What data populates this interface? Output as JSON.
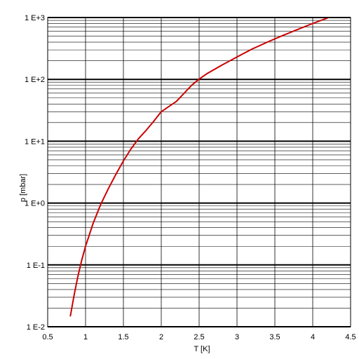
{
  "chart_data": {
    "type": "line",
    "title": "",
    "xlabel": "T [K]",
    "ylabel": "p [mbar]",
    "xlim": [
      0.5,
      4.5
    ],
    "ylim": [
      0.01,
      1000
    ],
    "yscale": "log",
    "grid": true,
    "x_ticks": [
      0.5,
      1,
      1.5,
      2,
      2.5,
      3,
      3.5,
      4,
      4.5
    ],
    "x_tick_labels": [
      "0.5",
      "1",
      "1.5",
      "2",
      "2.5",
      "3",
      "3.5",
      "4",
      "4.5"
    ],
    "y_ticks": [
      0.01,
      0.1,
      1,
      10,
      100,
      1000
    ],
    "y_tick_labels": [
      "1 E-2",
      "1 E-1",
      "1 E+0",
      "1 E+1",
      "1 E+2",
      "1 E+3"
    ],
    "series": [
      {
        "color": "#cc0000",
        "x": [
          0.8,
          0.85,
          0.9,
          0.95,
          1.0,
          1.1,
          1.2,
          1.3,
          1.4,
          1.5,
          1.6,
          1.7,
          1.8,
          1.9,
          2.0,
          2.2,
          2.4,
          2.5,
          2.6,
          2.8,
          3.0,
          3.2,
          3.4,
          3.6,
          3.8,
          4.0,
          4.2
        ],
        "y": [
          0.015,
          0.033,
          0.066,
          0.12,
          0.2,
          0.47,
          0.95,
          1.7,
          2.9,
          4.8,
          7.5,
          11,
          15,
          21,
          30,
          44,
          80,
          101,
          123,
          170,
          230,
          310,
          400,
          510,
          640,
          800,
          990
        ]
      }
    ]
  }
}
